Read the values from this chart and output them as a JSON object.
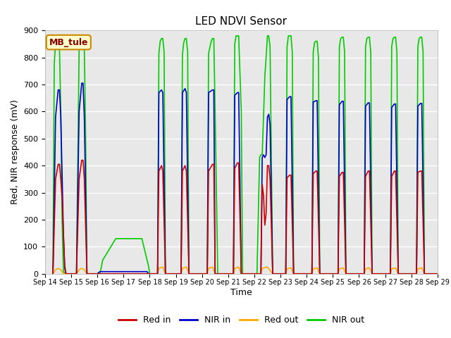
{
  "title": "LED NDVI Sensor",
  "xlabel": "Time",
  "ylabel": "Red, NIR response (mV)",
  "ylim": [
    0,
    900
  ],
  "xlim": [
    0,
    15
  ],
  "label_box": "MB_tule",
  "background_color": "#ffffff",
  "plot_bg_color": "#e8e8e8",
  "grid_color": "#ffffff",
  "tick_labels": [
    "Sep 14",
    "Sep 15",
    "Sep 16",
    "Sep 17",
    "Sep 18",
    "Sep 19",
    "Sep 20",
    "Sep 21",
    "Sep 22",
    "Sep 23",
    "Sep 24",
    "Sep 25",
    "Sep 26",
    "Sep 27",
    "Sep 28",
    "Sep 29"
  ],
  "legend_labels": [
    "Red in",
    "NIR in",
    "Red out",
    "NIR out"
  ],
  "legend_colors": [
    "#cc0000",
    "#0000cc",
    "#ffaa00",
    "#00cc00"
  ],
  "series": {
    "red_in": [
      [
        0.3,
        0
      ],
      [
        0.4,
        350
      ],
      [
        0.5,
        405
      ],
      [
        0.55,
        405
      ],
      [
        0.6,
        350
      ],
      [
        0.65,
        280
      ],
      [
        0.7,
        150
      ],
      [
        0.75,
        30
      ],
      [
        0.8,
        0
      ],
      [
        1.2,
        0
      ],
      [
        1.3,
        350
      ],
      [
        1.4,
        420
      ],
      [
        1.45,
        420
      ],
      [
        1.5,
        350
      ],
      [
        1.6,
        0
      ],
      [
        2.0,
        0
      ],
      [
        4.3,
        0
      ],
      [
        4.35,
        380
      ],
      [
        4.45,
        400
      ],
      [
        4.5,
        380
      ],
      [
        4.6,
        0
      ],
      [
        5.2,
        0
      ],
      [
        5.25,
        380
      ],
      [
        5.35,
        400
      ],
      [
        5.4,
        380
      ],
      [
        5.5,
        0
      ],
      [
        6.2,
        0
      ],
      [
        6.25,
        380
      ],
      [
        6.4,
        405
      ],
      [
        6.45,
        405
      ],
      [
        6.5,
        0
      ],
      [
        7.2,
        0
      ],
      [
        7.25,
        390
      ],
      [
        7.35,
        410
      ],
      [
        7.4,
        410
      ],
      [
        7.5,
        0
      ],
      [
        8.25,
        0
      ],
      [
        8.3,
        330
      ],
      [
        8.35,
        290
      ],
      [
        8.4,
        180
      ],
      [
        8.45,
        225
      ],
      [
        8.5,
        400
      ],
      [
        8.55,
        400
      ],
      [
        8.6,
        350
      ],
      [
        8.7,
        0
      ],
      [
        9.2,
        0
      ],
      [
        9.25,
        355
      ],
      [
        9.35,
        365
      ],
      [
        9.4,
        365
      ],
      [
        9.5,
        0
      ],
      [
        10.2,
        0
      ],
      [
        10.25,
        370
      ],
      [
        10.35,
        380
      ],
      [
        10.4,
        380
      ],
      [
        10.5,
        0
      ],
      [
        11.2,
        0
      ],
      [
        11.25,
        360
      ],
      [
        11.35,
        375
      ],
      [
        11.4,
        375
      ],
      [
        11.5,
        0
      ],
      [
        12.2,
        0
      ],
      [
        12.25,
        360
      ],
      [
        12.35,
        380
      ],
      [
        12.4,
        380
      ],
      [
        12.5,
        0
      ],
      [
        13.2,
        0
      ],
      [
        13.25,
        360
      ],
      [
        13.35,
        380
      ],
      [
        13.4,
        380
      ],
      [
        13.5,
        0
      ],
      [
        14.2,
        0
      ],
      [
        14.25,
        375
      ],
      [
        14.35,
        380
      ],
      [
        14.4,
        380
      ],
      [
        14.5,
        0
      ],
      [
        15.0,
        0
      ]
    ],
    "nir_in": [
      [
        0.3,
        0
      ],
      [
        0.4,
        580
      ],
      [
        0.5,
        680
      ],
      [
        0.55,
        680
      ],
      [
        0.6,
        580
      ],
      [
        0.7,
        150
      ],
      [
        0.75,
        20
      ],
      [
        0.8,
        0
      ],
      [
        1.2,
        0
      ],
      [
        1.3,
        600
      ],
      [
        1.4,
        705
      ],
      [
        1.45,
        705
      ],
      [
        1.5,
        580
      ],
      [
        1.6,
        0
      ],
      [
        2.0,
        0
      ],
      [
        2.05,
        5
      ],
      [
        2.1,
        8
      ],
      [
        3.9,
        8
      ],
      [
        3.95,
        0
      ],
      [
        4.3,
        0
      ],
      [
        4.35,
        670
      ],
      [
        4.45,
        680
      ],
      [
        4.5,
        670
      ],
      [
        4.6,
        0
      ],
      [
        5.2,
        0
      ],
      [
        5.25,
        670
      ],
      [
        5.35,
        685
      ],
      [
        5.4,
        670
      ],
      [
        5.5,
        0
      ],
      [
        6.2,
        0
      ],
      [
        6.25,
        670
      ],
      [
        6.4,
        680
      ],
      [
        6.45,
        680
      ],
      [
        6.5,
        0
      ],
      [
        7.2,
        0
      ],
      [
        7.25,
        660
      ],
      [
        7.35,
        670
      ],
      [
        7.4,
        670
      ],
      [
        7.5,
        0
      ],
      [
        8.25,
        0
      ],
      [
        8.3,
        430
      ],
      [
        8.35,
        440
      ],
      [
        8.4,
        430
      ],
      [
        8.45,
        440
      ],
      [
        8.5,
        580
      ],
      [
        8.55,
        590
      ],
      [
        8.6,
        550
      ],
      [
        8.7,
        0
      ],
      [
        9.2,
        0
      ],
      [
        9.25,
        645
      ],
      [
        9.35,
        655
      ],
      [
        9.4,
        655
      ],
      [
        9.5,
        0
      ],
      [
        10.2,
        0
      ],
      [
        10.25,
        635
      ],
      [
        10.35,
        640
      ],
      [
        10.4,
        640
      ],
      [
        10.5,
        0
      ],
      [
        11.2,
        0
      ],
      [
        11.25,
        625
      ],
      [
        11.35,
        638
      ],
      [
        11.4,
        638
      ],
      [
        11.5,
        0
      ],
      [
        12.2,
        0
      ],
      [
        12.25,
        620
      ],
      [
        12.35,
        632
      ],
      [
        12.4,
        632
      ],
      [
        12.5,
        0
      ],
      [
        13.2,
        0
      ],
      [
        13.25,
        615
      ],
      [
        13.35,
        628
      ],
      [
        13.4,
        628
      ],
      [
        13.5,
        0
      ],
      [
        14.2,
        0
      ],
      [
        14.25,
        620
      ],
      [
        14.35,
        630
      ],
      [
        14.4,
        630
      ],
      [
        14.5,
        0
      ],
      [
        15.0,
        0
      ]
    ],
    "red_out": [
      [
        0.3,
        0
      ],
      [
        0.4,
        15
      ],
      [
        0.5,
        20
      ],
      [
        0.6,
        15
      ],
      [
        0.7,
        0
      ],
      [
        1.2,
        0
      ],
      [
        1.3,
        15
      ],
      [
        1.4,
        20
      ],
      [
        1.5,
        15
      ],
      [
        1.6,
        0
      ],
      [
        2.0,
        0
      ],
      [
        4.3,
        0
      ],
      [
        4.35,
        20
      ],
      [
        4.5,
        25
      ],
      [
        4.6,
        0
      ],
      [
        5.2,
        0
      ],
      [
        5.25,
        20
      ],
      [
        5.4,
        25
      ],
      [
        5.5,
        0
      ],
      [
        6.2,
        0
      ],
      [
        6.25,
        20
      ],
      [
        6.4,
        25
      ],
      [
        6.5,
        0
      ],
      [
        7.2,
        0
      ],
      [
        7.25,
        20
      ],
      [
        7.4,
        25
      ],
      [
        7.5,
        0
      ],
      [
        8.25,
        0
      ],
      [
        8.3,
        20
      ],
      [
        8.5,
        25
      ],
      [
        8.7,
        0
      ],
      [
        9.2,
        0
      ],
      [
        9.25,
        18
      ],
      [
        9.4,
        22
      ],
      [
        9.5,
        0
      ],
      [
        10.2,
        0
      ],
      [
        10.25,
        18
      ],
      [
        10.4,
        22
      ],
      [
        10.5,
        0
      ],
      [
        11.2,
        0
      ],
      [
        11.25,
        18
      ],
      [
        11.4,
        22
      ],
      [
        11.5,
        0
      ],
      [
        12.2,
        0
      ],
      [
        12.25,
        18
      ],
      [
        12.4,
        22
      ],
      [
        12.5,
        0
      ],
      [
        13.2,
        0
      ],
      [
        13.25,
        18
      ],
      [
        13.4,
        22
      ],
      [
        13.5,
        0
      ],
      [
        14.2,
        0
      ],
      [
        14.25,
        18
      ],
      [
        14.4,
        22
      ],
      [
        14.5,
        0
      ],
      [
        15.0,
        0
      ]
    ],
    "nir_out": [
      [
        0.3,
        0
      ],
      [
        0.35,
        775
      ],
      [
        0.4,
        855
      ],
      [
        0.45,
        870
      ],
      [
        0.5,
        870
      ],
      [
        0.55,
        830
      ],
      [
        0.6,
        600
      ],
      [
        0.65,
        200
      ],
      [
        0.7,
        10
      ],
      [
        0.75,
        0
      ],
      [
        1.2,
        0
      ],
      [
        1.3,
        825
      ],
      [
        1.35,
        875
      ],
      [
        1.4,
        880
      ],
      [
        1.45,
        880
      ],
      [
        1.5,
        830
      ],
      [
        1.55,
        500
      ],
      [
        1.6,
        0
      ],
      [
        2.0,
        0
      ],
      [
        2.1,
        0
      ],
      [
        2.2,
        50
      ],
      [
        2.7,
        130
      ],
      [
        3.7,
        130
      ],
      [
        3.95,
        30
      ],
      [
        4.0,
        0
      ],
      [
        4.3,
        0
      ],
      [
        4.35,
        815
      ],
      [
        4.4,
        860
      ],
      [
        4.45,
        870
      ],
      [
        4.5,
        870
      ],
      [
        4.55,
        820
      ],
      [
        4.6,
        0
      ],
      [
        5.2,
        0
      ],
      [
        5.25,
        810
      ],
      [
        5.3,
        855
      ],
      [
        5.35,
        870
      ],
      [
        5.4,
        870
      ],
      [
        5.45,
        820
      ],
      [
        5.5,
        0
      ],
      [
        6.2,
        0
      ],
      [
        6.25,
        815
      ],
      [
        6.35,
        860
      ],
      [
        6.4,
        870
      ],
      [
        6.45,
        870
      ],
      [
        6.5,
        600
      ],
      [
        6.6,
        0
      ],
      [
        7.2,
        0
      ],
      [
        7.25,
        850
      ],
      [
        7.3,
        880
      ],
      [
        7.35,
        880
      ],
      [
        7.4,
        880
      ],
      [
        7.45,
        740
      ],
      [
        7.5,
        600
      ],
      [
        7.55,
        0
      ],
      [
        8.1,
        0
      ],
      [
        8.2,
        430
      ],
      [
        8.25,
        440
      ],
      [
        8.3,
        440
      ],
      [
        8.35,
        580
      ],
      [
        8.4,
        730
      ],
      [
        8.45,
        800
      ],
      [
        8.5,
        880
      ],
      [
        8.55,
        880
      ],
      [
        8.6,
        840
      ],
      [
        8.7,
        0
      ],
      [
        9.2,
        0
      ],
      [
        9.25,
        840
      ],
      [
        9.3,
        880
      ],
      [
        9.35,
        880
      ],
      [
        9.4,
        880
      ],
      [
        9.45,
        820
      ],
      [
        9.5,
        0
      ],
      [
        10.2,
        0
      ],
      [
        10.25,
        820
      ],
      [
        10.3,
        855
      ],
      [
        10.35,
        860
      ],
      [
        10.4,
        860
      ],
      [
        10.45,
        800
      ],
      [
        10.5,
        0
      ],
      [
        11.2,
        0
      ],
      [
        11.25,
        840
      ],
      [
        11.3,
        870
      ],
      [
        11.35,
        875
      ],
      [
        11.4,
        875
      ],
      [
        11.45,
        820
      ],
      [
        11.5,
        0
      ],
      [
        12.2,
        0
      ],
      [
        12.25,
        840
      ],
      [
        12.3,
        870
      ],
      [
        12.35,
        875
      ],
      [
        12.4,
        875
      ],
      [
        12.45,
        820
      ],
      [
        12.5,
        0
      ],
      [
        13.2,
        0
      ],
      [
        13.25,
        840
      ],
      [
        13.3,
        870
      ],
      [
        13.35,
        875
      ],
      [
        13.4,
        875
      ],
      [
        13.45,
        820
      ],
      [
        13.5,
        0
      ],
      [
        14.2,
        0
      ],
      [
        14.25,
        840
      ],
      [
        14.3,
        870
      ],
      [
        14.35,
        875
      ],
      [
        14.4,
        875
      ],
      [
        14.45,
        820
      ],
      [
        14.5,
        0
      ],
      [
        15.0,
        0
      ]
    ]
  }
}
